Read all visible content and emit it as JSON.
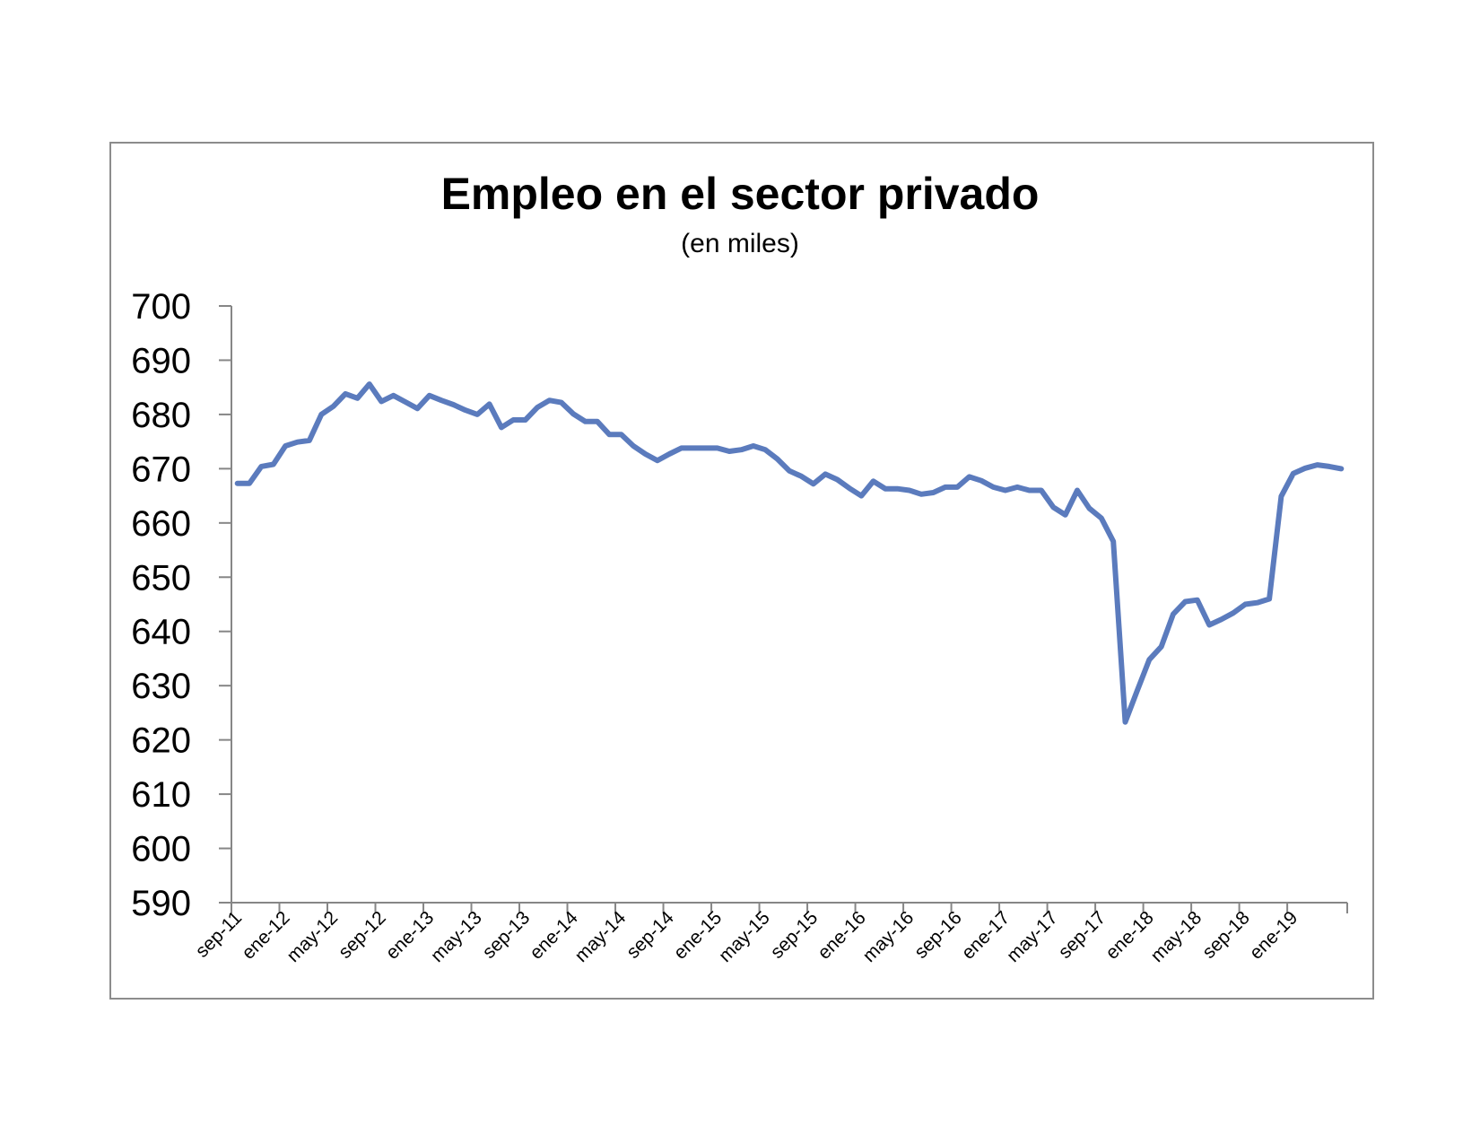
{
  "chart_data": {
    "type": "line",
    "title": "Empleo en el sector privado",
    "subtitle": "(en miles)",
    "xlabel": "",
    "ylabel": "",
    "ylim": [
      590,
      700
    ],
    "yticks": [
      590,
      600,
      610,
      620,
      630,
      640,
      650,
      660,
      670,
      680,
      690,
      700
    ],
    "grid": false,
    "legend": "none",
    "line_color": "#5b7bbd",
    "x_tick_labels": [
      {
        "index": 0,
        "label": "sep-11"
      },
      {
        "index": 4,
        "label": "ene-12"
      },
      {
        "index": 8,
        "label": "may-12"
      },
      {
        "index": 12,
        "label": "sep-12"
      },
      {
        "index": 16,
        "label": "ene-13"
      },
      {
        "index": 20,
        "label": "may-13"
      },
      {
        "index": 24,
        "label": "sep-13"
      },
      {
        "index": 28,
        "label": "ene-14"
      },
      {
        "index": 32,
        "label": "may-14"
      },
      {
        "index": 36,
        "label": "sep-14"
      },
      {
        "index": 40,
        "label": "ene-15"
      },
      {
        "index": 44,
        "label": "may-15"
      },
      {
        "index": 48,
        "label": "sep-15"
      },
      {
        "index": 52,
        "label": "ene-16"
      },
      {
        "index": 56,
        "label": "may-16"
      },
      {
        "index": 60,
        "label": "sep-16"
      },
      {
        "index": 64,
        "label": "ene-17"
      },
      {
        "index": 68,
        "label": "may-17"
      },
      {
        "index": 72,
        "label": "sep-17"
      },
      {
        "index": 76,
        "label": "ene-18"
      },
      {
        "index": 80,
        "label": "may-18"
      },
      {
        "index": 84,
        "label": "sep-18"
      },
      {
        "index": 88,
        "label": "ene-19"
      }
    ],
    "series": [
      {
        "values": [
          667.3,
          667.3,
          670.4,
          670.8,
          674.2,
          674.9,
          675.2,
          680.0,
          681.5,
          683.8,
          683.0,
          685.6,
          682.4,
          683.5,
          682.3,
          681.1,
          683.5,
          682.6,
          681.8,
          680.8,
          680.0,
          681.9,
          677.6,
          679.0,
          679.0,
          681.3,
          682.6,
          682.2,
          680.1,
          678.7,
          678.7,
          676.3,
          676.3,
          674.2,
          672.7,
          671.5,
          672.7,
          673.8,
          673.8,
          673.8,
          673.8,
          673.2,
          673.5,
          674.2,
          673.5,
          671.8,
          669.6,
          668.6,
          667.2,
          669.0,
          668.0,
          666.4,
          665.0,
          667.7,
          666.3,
          666.3,
          666.0,
          665.3,
          665.6,
          666.6,
          666.6,
          668.5,
          667.8,
          666.6,
          666.0,
          666.6,
          666.0,
          666.0,
          662.9,
          661.5,
          666.0,
          662.7,
          660.9,
          656.6,
          623.3,
          629.1,
          634.8,
          637.2,
          643.2,
          645.5,
          645.8,
          641.2,
          642.2,
          643.4,
          645.0,
          645.3,
          646.0,
          664.9,
          669.1,
          670.1,
          670.7,
          670.4,
          670.0
        ]
      }
    ]
  }
}
